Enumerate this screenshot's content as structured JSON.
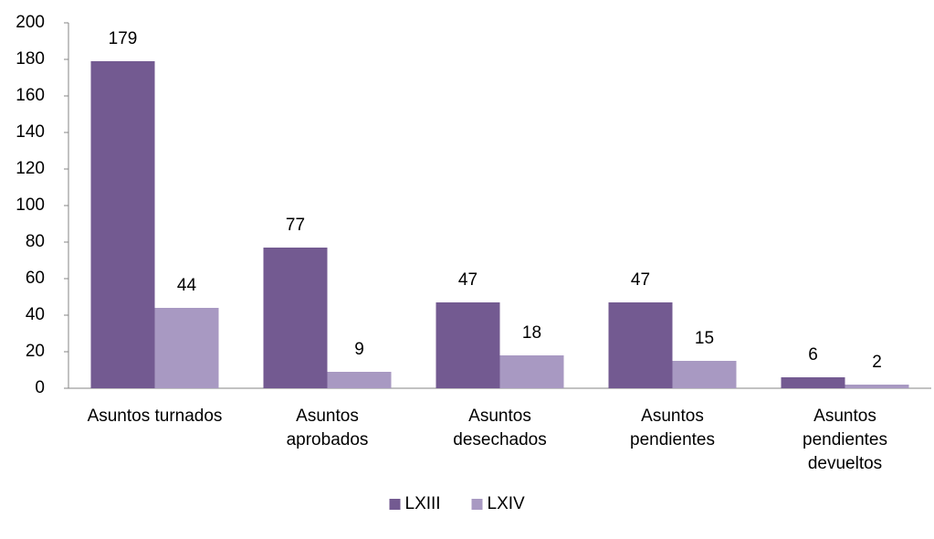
{
  "chart_data": {
    "type": "bar",
    "categories": [
      "Asuntos turnados",
      "Asuntos\naprobados",
      "Asuntos\ndesechados",
      "Asuntos\npendientes",
      "Asuntos\npendientes\ndevueltos"
    ],
    "series": [
      {
        "name": "LXIII",
        "color": "#735a91",
        "values": [
          179,
          77,
          47,
          47,
          6
        ]
      },
      {
        "name": "LXIV",
        "color": "#a899c2",
        "values": [
          44,
          9,
          18,
          15,
          2
        ]
      }
    ],
    "ylim": [
      0,
      200
    ],
    "yticks": [
      0,
      20,
      40,
      60,
      80,
      100,
      120,
      140,
      160,
      180,
      200
    ],
    "grid": false,
    "legend": "bottom"
  }
}
